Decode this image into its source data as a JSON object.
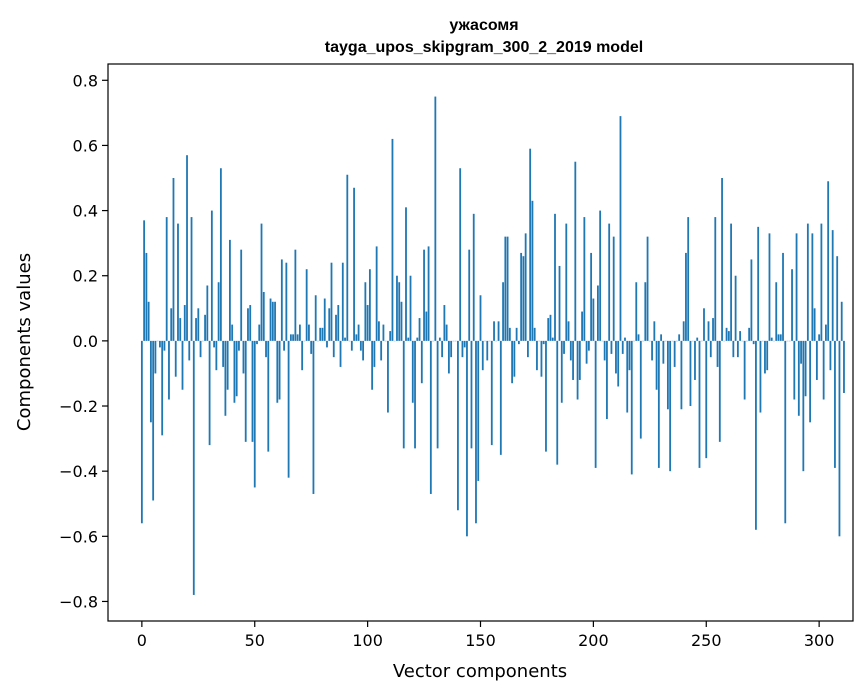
{
  "chart_data": {
    "type": "bar",
    "title": "ужасомя",
    "subtitle": "tayga_upos_skipgram_300_2_2019 model",
    "xlabel": "Vector components",
    "ylabel": "Components values",
    "xlim": [
      -15,
      315
    ],
    "ylim": [
      -0.86,
      0.85
    ],
    "xticks": [
      0,
      50,
      100,
      150,
      200,
      250,
      300
    ],
    "yticks": [
      -0.8,
      -0.6,
      -0.4,
      -0.2,
      0.0,
      0.2,
      0.4,
      0.6,
      0.8
    ],
    "ytick_labels": [
      "−0.8",
      "−0.6",
      "−0.4",
      "−0.2",
      "0.0",
      "0.2",
      "0.4",
      "0.6",
      "0.8"
    ],
    "grid": false,
    "bar_color": "#1f77b4",
    "values": [
      -0.56,
      0.37,
      0.27,
      0.12,
      -0.25,
      -0.49,
      -0.1,
      0.0,
      -0.02,
      -0.29,
      -0.03,
      0.38,
      -0.18,
      0.1,
      0.5,
      -0.11,
      0.36,
      0.07,
      -0.15,
      0.11,
      0.57,
      -0.06,
      0.38,
      -0.78,
      0.07,
      0.1,
      -0.05,
      0.0,
      0.08,
      0.17,
      -0.32,
      0.4,
      -0.02,
      -0.09,
      0.18,
      0.53,
      -0.08,
      -0.23,
      -0.15,
      0.31,
      0.05,
      -0.19,
      -0.17,
      -0.03,
      0.28,
      -0.1,
      -0.31,
      0.1,
      0.11,
      -0.31,
      -0.45,
      -0.01,
      0.05,
      0.36,
      0.15,
      -0.05,
      -0.34,
      0.13,
      0.12,
      0.12,
      -0.19,
      -0.18,
      0.25,
      -0.03,
      0.24,
      -0.42,
      0.02,
      0.02,
      0.28,
      0.02,
      0.05,
      -0.09,
      0.0,
      0.22,
      0.05,
      -0.04,
      -0.47,
      0.14,
      0.0,
      0.04,
      0.04,
      0.13,
      -0.02,
      0.1,
      0.24,
      -0.05,
      0.08,
      0.11,
      -0.08,
      0.24,
      0.01,
      0.51,
      0.0,
      -0.03,
      0.47,
      0.02,
      0.05,
      -0.03,
      -0.06,
      0.18,
      0.11,
      0.22,
      -0.15,
      -0.08,
      0.29,
      0.06,
      -0.06,
      0.05,
      0.0,
      -0.22,
      0.03,
      0.62,
      0.0,
      0.2,
      0.18,
      0.12,
      -0.33,
      0.41,
      0.01,
      0.2,
      -0.19,
      -0.33,
      0.01,
      0.07,
      -0.13,
      0.28,
      0.09,
      0.29,
      -0.47,
      0.0,
      0.75,
      -0.33,
      0.01,
      -0.05,
      0.11,
      0.05,
      -0.1,
      -0.05,
      0.0,
      0.0,
      -0.52,
      0.53,
      -0.05,
      -0.02,
      -0.6,
      0.28,
      -0.33,
      0.39,
      -0.56,
      -0.43,
      0.14,
      -0.09,
      0.0,
      -0.06,
      0.0,
      -0.32,
      0.06,
      0.0,
      0.06,
      -0.35,
      0.18,
      0.32,
      0.32,
      0.04,
      -0.13,
      -0.11,
      0.04,
      -0.01,
      0.27,
      0.26,
      0.33,
      -0.05,
      0.59,
      0.43,
      0.04,
      -0.09,
      0.0,
      -0.11,
      -0.01,
      -0.34,
      0.07,
      0.08,
      0.01,
      0.39,
      -0.38,
      0.23,
      -0.19,
      -0.04,
      0.36,
      0.06,
      -0.06,
      -0.12,
      0.55,
      -0.18,
      -0.12,
      0.09,
      0.38,
      -0.07,
      -0.03,
      0.27,
      0.13,
      -0.39,
      0.17,
      0.4,
      0.0,
      -0.06,
      -0.24,
      0.36,
      -0.04,
      0.32,
      -0.1,
      -0.14,
      0.69,
      -0.04,
      0.01,
      -0.22,
      -0.09,
      -0.41,
      0.0,
      0.18,
      0.02,
      -0.3,
      0.0,
      0.18,
      0.32,
      0.0,
      -0.06,
      0.06,
      -0.15,
      -0.39,
      0.02,
      -0.07,
      0.0,
      -0.21,
      -0.4,
      0.0,
      -0.08,
      0.0,
      0.02,
      -0.21,
      0.06,
      0.27,
      0.38,
      -0.2,
      0.0,
      -0.12,
      0.01,
      -0.39,
      0.0,
      0.1,
      -0.36,
      0.06,
      -0.05,
      0.07,
      0.38,
      -0.08,
      -0.31,
      0.5,
      0.0,
      0.04,
      0.03,
      0.36,
      -0.05,
      0.2,
      -0.05,
      0.03,
      0.0,
      -0.18,
      0.0,
      0.04,
      0.25,
      -0.01,
      -0.58,
      0.35,
      -0.22,
      0.0,
      -0.1,
      -0.09,
      0.33,
      0.01,
      0.0,
      0.18,
      0.02,
      0.02,
      0.27,
      -0.56,
      0.0,
      0.0,
      0.22,
      -0.18,
      0.33,
      -0.23,
      -0.07,
      -0.4,
      -0.17,
      0.36,
      -0.25,
      0.33,
      0.1,
      -0.12,
      0.02,
      0.36,
      -0.18,
      0.05,
      0.49,
      -0.09,
      0.34,
      -0.39,
      0.26,
      -0.6,
      0.12,
      -0.16
    ]
  }
}
